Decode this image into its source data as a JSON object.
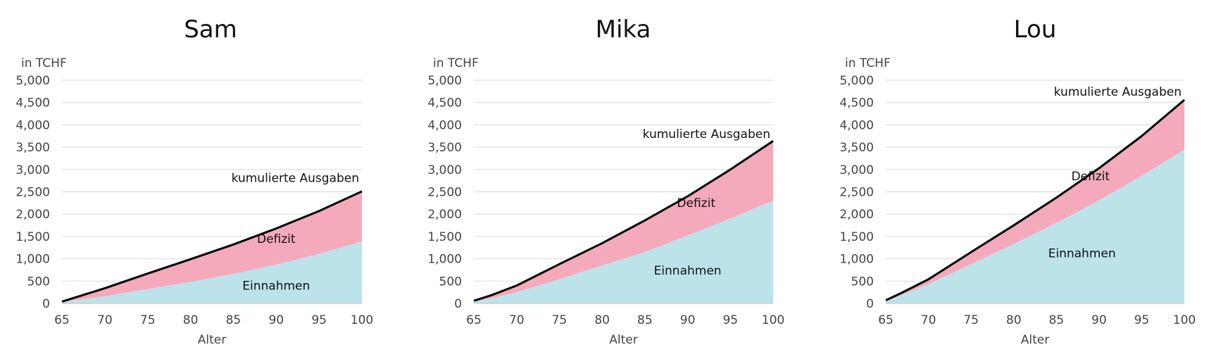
{
  "chart_data": [
    {
      "type": "area",
      "title": "Sam",
      "unit_label": "in TCHF",
      "xlabel": "Alter",
      "ylabel": "",
      "xlim": [
        65,
        100
      ],
      "ylim": [
        0,
        5000
      ],
      "x_ticks": [
        65,
        70,
        75,
        80,
        85,
        90,
        95,
        100
      ],
      "y_ticks": [
        0,
        500,
        1000,
        1500,
        2000,
        2500,
        3000,
        3500,
        4000,
        4500,
        5000
      ],
      "y_tick_labels": [
        "0",
        "500",
        "1,000",
        "1,500",
        "2,000",
        "2,500",
        "3,000",
        "3,500",
        "4,000",
        "4,500",
        "5,000"
      ],
      "x": [
        65,
        70,
        75,
        80,
        85,
        90,
        95,
        100
      ],
      "series": [
        {
          "name": "Einnahmen",
          "values": [
            30,
            160,
            320,
            480,
            660,
            870,
            1110,
            1390
          ]
        },
        {
          "name": "kumulierte Ausgaben",
          "values": [
            40,
            340,
            670,
            990,
            1320,
            1680,
            2070,
            2510
          ]
        }
      ],
      "annotations": [
        {
          "text": "kumulierte Ausgaben",
          "x": 100,
          "y": 2720
        },
        {
          "text": "Defizit",
          "x": 90,
          "y": 1360
        },
        {
          "text": "Einnahmen",
          "x": 90,
          "y": 310
        }
      ],
      "colors": {
        "income": "#bde3ea",
        "deficit": "#f4aabb",
        "line": "#000000"
      }
    },
    {
      "type": "area",
      "title": "Mika",
      "unit_label": "in TCHF",
      "xlabel": "Alter",
      "ylabel": "",
      "xlim": [
        65,
        100
      ],
      "ylim": [
        0,
        5000
      ],
      "x_ticks": [
        65,
        70,
        75,
        80,
        85,
        90,
        95,
        100
      ],
      "y_ticks": [
        0,
        500,
        1000,
        1500,
        2000,
        2500,
        3000,
        3500,
        4000,
        4500,
        5000
      ],
      "y_tick_labels": [
        "0",
        "500",
        "1,000",
        "1,500",
        "2,000",
        "2,500",
        "3,000",
        "3,500",
        "4,000",
        "4,500",
        "5,000"
      ],
      "x": [
        65,
        67,
        70,
        75,
        80,
        85,
        90,
        95,
        100
      ],
      "series": [
        {
          "name": "Einnahmen",
          "values": [
            40,
            110,
            250,
            540,
            850,
            1150,
            1520,
            1900,
            2300
          ]
        },
        {
          "name": "kumulierte Ausgaben",
          "values": [
            60,
            180,
            400,
            880,
            1350,
            1860,
            2400,
            3000,
            3640
          ]
        }
      ],
      "annotations": [
        {
          "text": "kumulierte Ausgaben",
          "x": 100,
          "y": 3710
        },
        {
          "text": "Defizit",
          "x": 91,
          "y": 2160
        },
        {
          "text": "Einnahmen",
          "x": 90,
          "y": 650
        }
      ],
      "colors": {
        "income": "#bde3ea",
        "deficit": "#f4aabb",
        "line": "#000000"
      }
    },
    {
      "type": "area",
      "title": "Lou",
      "unit_label": "in TCHF",
      "xlabel": "Alter",
      "ylabel": "",
      "xlim": [
        65,
        100
      ],
      "ylim": [
        0,
        5000
      ],
      "x_ticks": [
        65,
        70,
        75,
        80,
        85,
        90,
        95,
        100
      ],
      "y_ticks": [
        0,
        500,
        1000,
        1500,
        2000,
        2500,
        3000,
        3500,
        4000,
        4500,
        5000
      ],
      "y_tick_labels": [
        "0",
        "500",
        "1,000",
        "1,500",
        "2,000",
        "2,500",
        "3,000",
        "3,500",
        "4,000",
        "4,500",
        "5,000"
      ],
      "x": [
        65,
        67,
        70,
        75,
        80,
        85,
        90,
        95,
        100
      ],
      "series": [
        {
          "name": "Einnahmen",
          "values": [
            50,
            200,
            430,
            880,
            1330,
            1800,
            2310,
            2860,
            3440
          ]
        },
        {
          "name": "kumulierte Ausgaben",
          "values": [
            70,
            250,
            540,
            1150,
            1750,
            2370,
            3030,
            3750,
            4560
          ]
        }
      ],
      "annotations": [
        {
          "text": "kumulierte Ausgaben",
          "x": 100,
          "y": 4650
        },
        {
          "text": "Defizit",
          "x": 89,
          "y": 2760
        },
        {
          "text": "Einnahmen",
          "x": 88,
          "y": 1030
        }
      ],
      "colors": {
        "income": "#bde3ea",
        "deficit": "#f4aabb",
        "line": "#000000"
      }
    }
  ]
}
